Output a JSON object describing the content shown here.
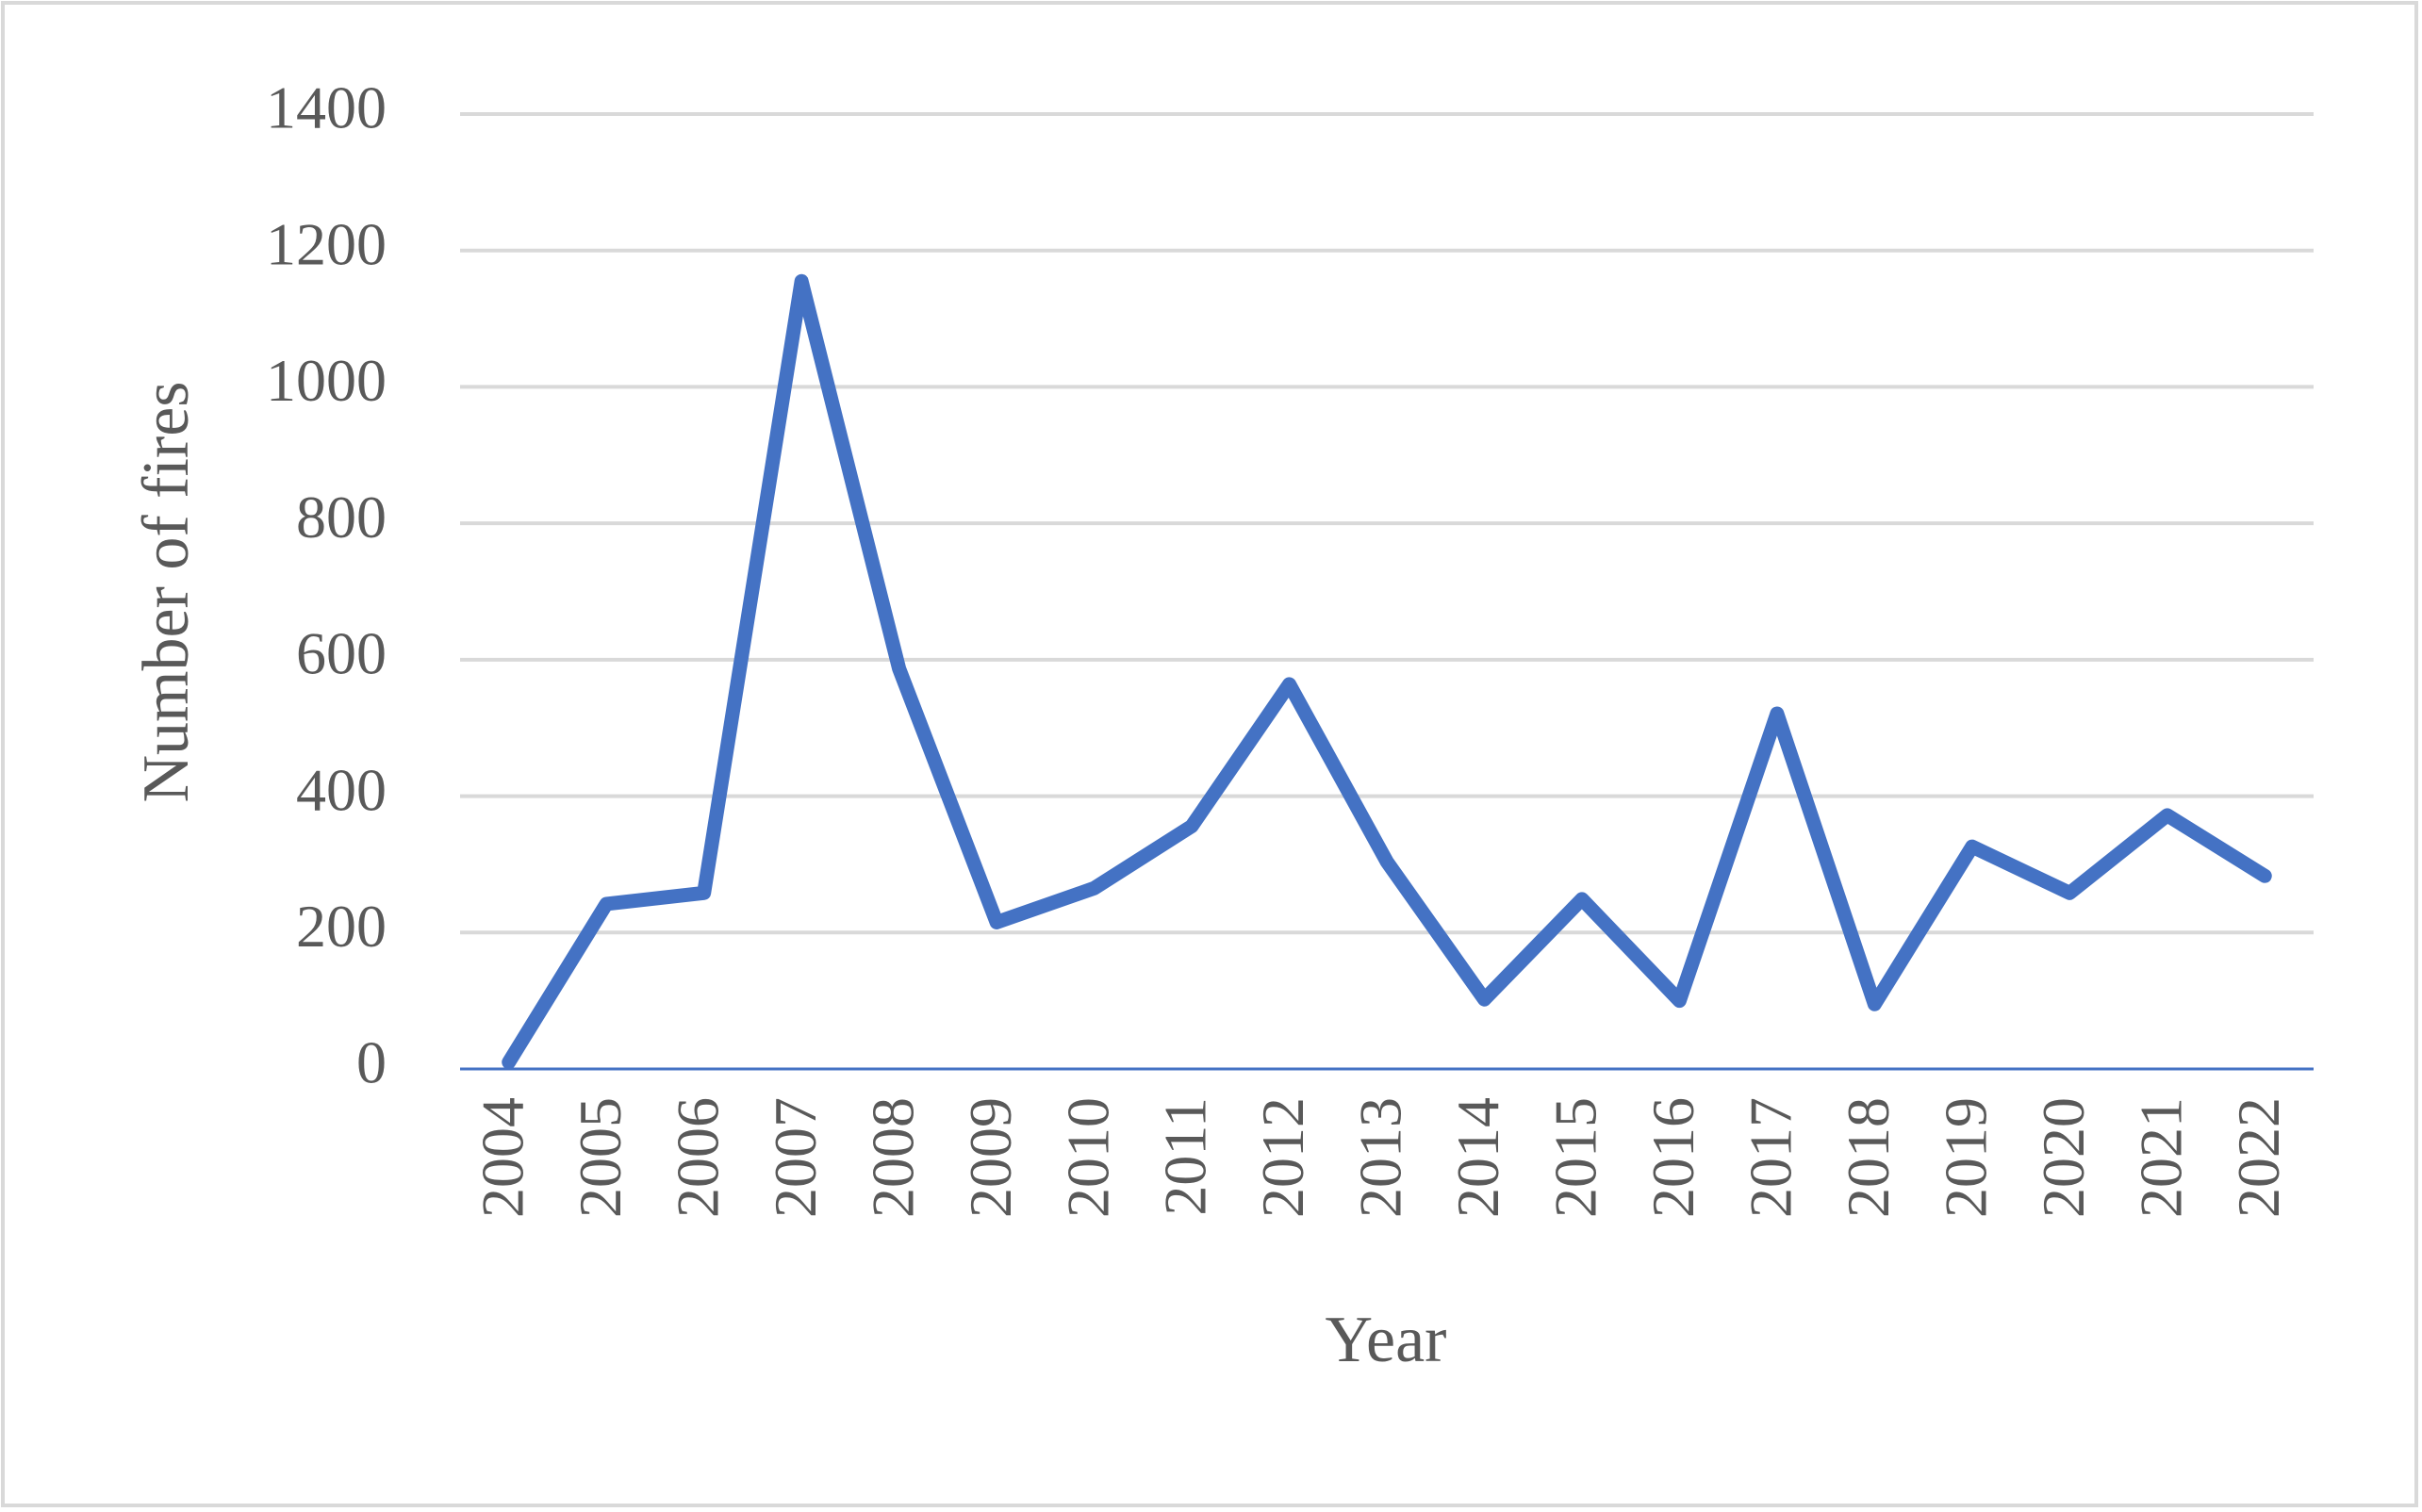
{
  "chart_data": {
    "type": "line",
    "x_label": "Year",
    "y_label": "Number of fires",
    "categories": [
      "2004",
      "2005",
      "2006",
      "2007",
      "2008",
      "2009",
      "2010",
      "2011",
      "2012",
      "2013",
      "2014",
      "2015",
      "2016",
      "2017",
      "2018",
      "2019",
      "2020",
      "2021",
      "2022"
    ],
    "series": [
      {
        "name": "Number of fires",
        "color": "#4472c4",
        "values": [
          10,
          242,
          258,
          1155,
          587,
          215,
          265,
          356,
          564,
          304,
          102,
          249,
          100,
          521,
          95,
          326,
          258,
          372,
          283
        ]
      }
    ],
    "ylim": [
      0,
      1400
    ],
    "yticks": [
      0,
      200,
      400,
      600,
      800,
      1000,
      1200,
      1400
    ],
    "grid": true
  }
}
